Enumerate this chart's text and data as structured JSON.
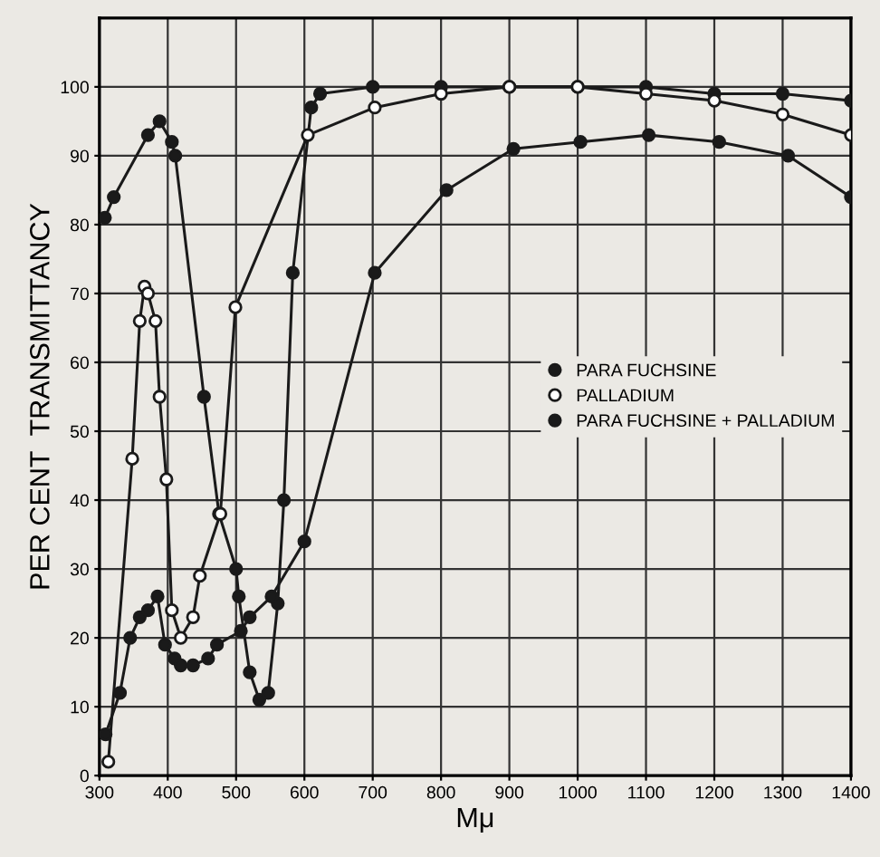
{
  "chart_data": {
    "type": "line",
    "xlabel": "Mμ",
    "ylabel": "PER CENT  TRANSMITTANCY",
    "xlim": [
      300,
      1400
    ],
    "ylim": [
      0,
      110
    ],
    "xticks": [
      300,
      400,
      500,
      600,
      700,
      800,
      900,
      1000,
      1100,
      1200,
      1300,
      1400
    ],
    "yticks": [
      0,
      10,
      20,
      30,
      40,
      50,
      60,
      70,
      80,
      90,
      100
    ],
    "grid": true,
    "legend": "right",
    "marker": "circle",
    "line_style": "solid",
    "series": [
      {
        "name": "PARA FUCHSINE",
        "color": "#1a1a1a",
        "x": [
          308,
          321,
          371,
          388,
          406,
          411,
          453,
          475,
          500,
          504,
          520,
          534,
          547,
          561,
          570,
          583,
          610,
          623,
          700,
          800,
          900,
          1000,
          1100,
          1200,
          1300,
          1400
        ],
        "values": [
          81,
          84,
          93,
          95,
          92,
          90,
          55,
          38,
          30,
          26,
          15,
          11,
          12,
          25,
          40,
          73,
          97,
          99,
          100,
          100,
          100,
          100,
          100,
          99,
          99,
          98
        ]
      },
      {
        "name": "PALLADIUM",
        "color": "#ffffff",
        "x": [
          313,
          348,
          359,
          366,
          371,
          382,
          388,
          398,
          406,
          419,
          437,
          447,
          477,
          499,
          605,
          703,
          800,
          900,
          1000,
          1100,
          1200,
          1300,
          1400
        ],
        "values": [
          2,
          46,
          66,
          71,
          70,
          66,
          55,
          43,
          24,
          20,
          23,
          29,
          38,
          68,
          93,
          97,
          99,
          100,
          100,
          99,
          98,
          96,
          93
        ]
      },
      {
        "name": "PARA FUCHSINE + PALLADIUM",
        "color": "#1a1a1a",
        "x": [
          309,
          330,
          345,
          359,
          371,
          385,
          396,
          410,
          419,
          437,
          459,
          472,
          507,
          520,
          552,
          600,
          703,
          808,
          906,
          1004,
          1104,
          1207,
          1308,
          1400
        ],
        "values": [
          6,
          12,
          20,
          23,
          24,
          26,
          19,
          17,
          16,
          16,
          17,
          19,
          21,
          23,
          26,
          34,
          73,
          85,
          91,
          92,
          93,
          92,
          90,
          84
        ]
      }
    ]
  }
}
